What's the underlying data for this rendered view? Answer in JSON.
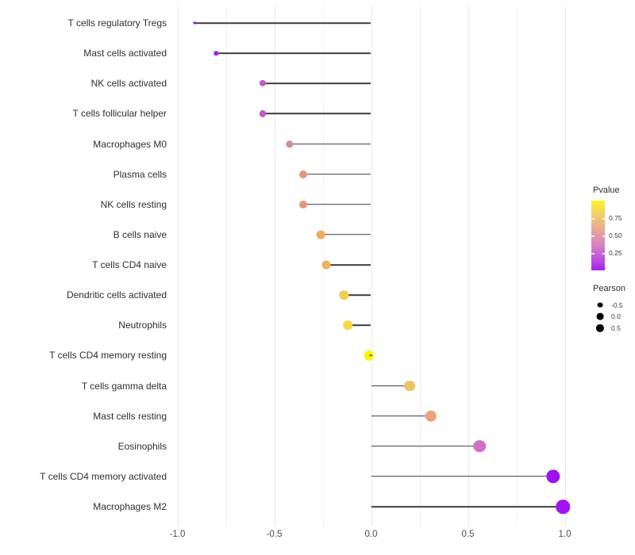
{
  "chart_data": {
    "type": "lollipop",
    "title": "",
    "xlabel": "",
    "ylabel": "",
    "xlim": [
      -1.05,
      1.1
    ],
    "x_major_ticks": [
      -1.0,
      -0.5,
      0.0,
      0.5,
      1.0
    ],
    "x_minor_ticks": [
      -0.75,
      -0.25,
      0.25,
      0.75
    ],
    "x_tick_labels": [
      "-1.0",
      "-0.5",
      "0.0",
      "0.5",
      "1.0"
    ],
    "grid": "vertical-only",
    "points": [
      {
        "label": "T cells regulatory  Tregs",
        "pearson": -0.91,
        "color": "#9c17ee"
      },
      {
        "label": "Mast cells activated",
        "pearson": -0.8,
        "color": "#a326e6"
      },
      {
        "label": "NK cells activated",
        "pearson": -0.56,
        "color": "#c45ac3"
      },
      {
        "label": "T cells follicular helper",
        "pearson": -0.56,
        "color": "#c45ac3"
      },
      {
        "label": "Macrophages M0",
        "pearson": -0.42,
        "color": "#d9898f"
      },
      {
        "label": "Plasma cells",
        "pearson": -0.35,
        "color": "#e4977d"
      },
      {
        "label": "NK cells resting",
        "pearson": -0.35,
        "color": "#e4977d"
      },
      {
        "label": "B cells naive",
        "pearson": -0.26,
        "color": "#ebab62"
      },
      {
        "label": "T cells CD4 naive",
        "pearson": -0.23,
        "color": "#ecb25d"
      },
      {
        "label": "Dendritic cells activated",
        "pearson": -0.14,
        "color": "#f0ce50"
      },
      {
        "label": "Neutrophils",
        "pearson": -0.12,
        "color": "#f2d948"
      },
      {
        "label": "T cells CD4 memory resting",
        "pearson": -0.01,
        "color": "#fcf700"
      },
      {
        "label": "T cells gamma delta",
        "pearson": 0.2,
        "color": "#edc464"
      },
      {
        "label": "Mast cells resting",
        "pearson": 0.31,
        "color": "#eba377"
      },
      {
        "label": "Eosinophils",
        "pearson": 0.56,
        "color": "#d06fc5"
      },
      {
        "label": "T cells CD4 memory activated",
        "pearson": 0.94,
        "color": "#9d12ee"
      },
      {
        "label": "Macrophages M2",
        "pearson": 0.99,
        "color": "#a113f0"
      }
    ],
    "legend_position": "right",
    "legends": {
      "color": {
        "title": "Pvalue",
        "gradient_top_to_bottom": [
          "#fcf521",
          "#f0c573",
          "#e09aa8",
          "#cb66d3",
          "#a520f2"
        ],
        "range": [
          0,
          1
        ],
        "ticks": [
          {
            "label": "0.75",
            "value": 0.75
          },
          {
            "label": "0.50",
            "value": 0.5
          },
          {
            "label": "0.25",
            "value": 0.25
          }
        ]
      },
      "size": {
        "title": "Pearson",
        "entries": [
          {
            "label": "-0.5",
            "value": -0.5
          },
          {
            "label": "0.0",
            "value": 0.0
          },
          {
            "label": "0.5",
            "value": 0.5
          }
        ],
        "dot_color": "#000000"
      }
    },
    "style": {
      "stick_color": "#3c3c3c",
      "grid_color": "#e9e9e9",
      "text_color": "#2f2f2f"
    }
  }
}
